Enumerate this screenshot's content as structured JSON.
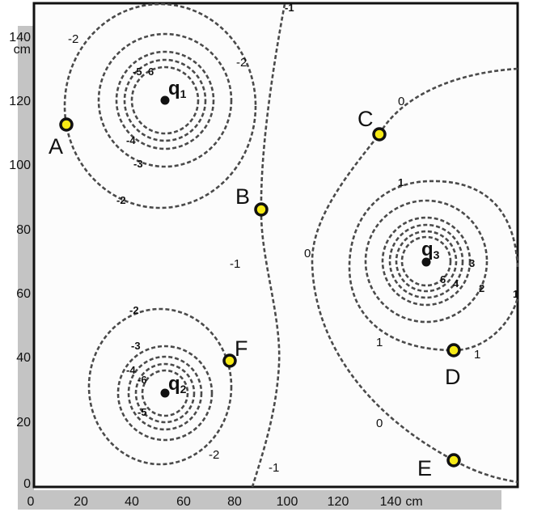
{
  "axes": {
    "x_ticks": [
      "0",
      "20",
      "40",
      "60",
      "80",
      "100",
      "120",
      "140"
    ],
    "x_unit": "cm",
    "y_ticks": [
      "0",
      "20",
      "40",
      "60",
      "80",
      "100",
      "120",
      "140"
    ],
    "y_unit": "cm"
  },
  "charges": [
    {
      "symbol": "q",
      "subscript": "1"
    },
    {
      "symbol": "q",
      "subscript": "2"
    },
    {
      "symbol": "q",
      "subscript": "3"
    }
  ],
  "points": [
    "A",
    "B",
    "C",
    "D",
    "E",
    "F"
  ],
  "contour_labels": {
    "q1": [
      "-2",
      "-2",
      "-5",
      "6",
      "-4",
      "-3",
      "-2"
    ],
    "q2": [
      "-2",
      "-3",
      "-4",
      "-6",
      "-5",
      "-2"
    ],
    "q3": [
      "0",
      "1",
      "0",
      "3",
      "6",
      "4",
      "2",
      "1",
      "1",
      "0",
      "1"
    ],
    "middle": [
      "-1",
      "-1",
      "-1"
    ]
  },
  "colors": {
    "point_fill": "#f7ea16",
    "contour": "#4a4a4a",
    "axis_strip": "#c4c4c4"
  }
}
